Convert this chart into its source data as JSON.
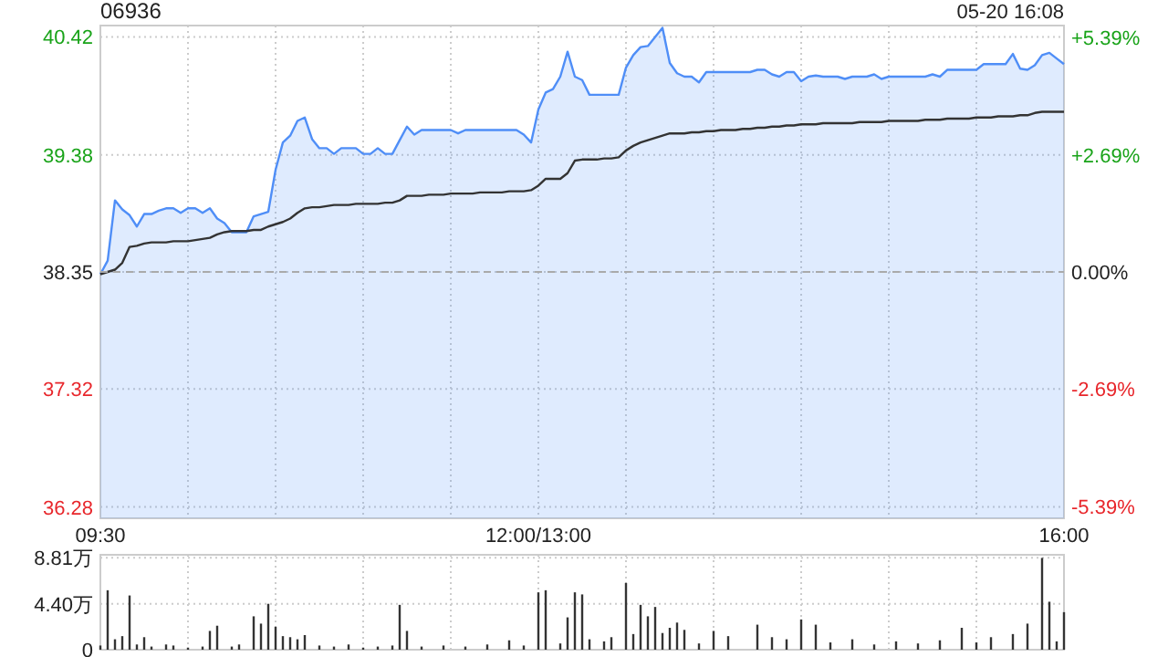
{
  "chart_data": [
    {
      "type": "line",
      "title": "06936",
      "subtitle": "05-20 16:08",
      "categories": [
        "09:30",
        null,
        null,
        null,
        null,
        null,
        null,
        null,
        null,
        null,
        null,
        null,
        null,
        null,
        null,
        null,
        null,
        null,
        null,
        null,
        null,
        null,
        null,
        null,
        null,
        null,
        null,
        null,
        null,
        null,
        null,
        null,
        null,
        null,
        null,
        null,
        null,
        null,
        null,
        null,
        null,
        null,
        null,
        null,
        null,
        null,
        null,
        null,
        null,
        null,
        null,
        null,
        null,
        null,
        null,
        null,
        null,
        null,
        null,
        null,
        "12:00/13:00",
        null,
        null,
        null,
        null,
        null,
        null,
        null,
        null,
        null,
        null,
        null,
        null,
        null,
        null,
        null,
        null,
        null,
        null,
        null,
        null,
        null,
        null,
        null,
        null,
        null,
        null,
        null,
        null,
        null,
        null,
        null,
        null,
        null,
        null,
        null,
        null,
        null,
        null,
        null,
        null,
        null,
        null,
        null,
        null,
        null,
        null,
        null,
        null,
        null,
        null,
        null,
        null,
        null,
        null,
        null,
        null,
        null,
        null,
        null,
        null,
        null,
        null,
        null,
        null,
        null,
        null,
        null,
        null,
        null,
        null,
        null,
        "16:00"
      ],
      "ylim": [
        36.18,
        40.52
      ],
      "yticks": [
        36.28,
        37.32,
        38.35,
        39.38,
        40.42
      ],
      "y2lim": [
        -5.66,
        5.66
      ],
      "y2ticks": [
        {
          "value": -5.39,
          "label": "-5.39%"
        },
        {
          "value": -2.69,
          "label": "-2.69%"
        },
        {
          "value": 0,
          "label": "0.00%"
        },
        {
          "value": 2.69,
          "label": "+2.69%"
        },
        {
          "value": 5.39,
          "label": "+5.39%"
        }
      ],
      "grid": true,
      "ref_lines": [
        {
          "axis": "y",
          "value": 38.35,
          "line_style": "dashed",
          "color": "#aaaaaa"
        }
      ],
      "series": [
        {
          "type": "area",
          "color": "#4f8ef7",
          "values": [
            38.33,
            38.45,
            38.98,
            38.9,
            38.85,
            38.75,
            38.86,
            38.86,
            38.89,
            38.91,
            38.91,
            38.87,
            38.91,
            38.91,
            38.87,
            38.91,
            38.82,
            38.78,
            38.7,
            38.7,
            38.7,
            38.84,
            38.86,
            38.88,
            39.25,
            39.49,
            39.55,
            39.68,
            39.71,
            39.52,
            39.44,
            39.44,
            39.39,
            39.44,
            39.44,
            39.44,
            39.39,
            39.39,
            39.44,
            39.39,
            39.39,
            39.51,
            39.63,
            39.56,
            39.6,
            39.6,
            39.6,
            39.6,
            39.6,
            39.57,
            39.6,
            39.6,
            39.6,
            39.6,
            39.6,
            39.6,
            39.6,
            39.6,
            39.56,
            39.49,
            39.78,
            39.93,
            39.96,
            40.07,
            40.29,
            40.07,
            40.04,
            39.91,
            39.91,
            39.91,
            39.91,
            39.91,
            40.15,
            40.26,
            40.33,
            40.34,
            40.42,
            40.5,
            40.19,
            40.1,
            40.07,
            40.07,
            40.02,
            40.11,
            40.11,
            40.11,
            40.11,
            40.11,
            40.11,
            40.11,
            40.13,
            40.13,
            40.09,
            40.07,
            40.11,
            40.11,
            40.03,
            40.07,
            40.08,
            40.07,
            40.07,
            40.07,
            40.05,
            40.07,
            40.07,
            40.07,
            40.09,
            40.05,
            40.07,
            40.07,
            40.07,
            40.07,
            40.07,
            40.07,
            40.09,
            40.07,
            40.13,
            40.13,
            40.13,
            40.13,
            40.13,
            40.18,
            40.18,
            40.18,
            40.18,
            40.27,
            40.14,
            40.13,
            40.17,
            40.26,
            40.28,
            40.23,
            40.18
          ]
        },
        {
          "type": "line",
          "color": "#333333",
          "values": [
            38.33,
            38.35,
            38.37,
            38.43,
            38.57,
            38.58,
            38.6,
            38.61,
            38.61,
            38.61,
            38.62,
            38.62,
            38.62,
            38.63,
            38.64,
            38.65,
            38.68,
            38.7,
            38.71,
            38.71,
            38.71,
            38.72,
            38.72,
            38.75,
            38.77,
            38.79,
            38.82,
            38.87,
            38.91,
            38.92,
            38.92,
            38.93,
            38.94,
            38.94,
            38.94,
            38.95,
            38.95,
            38.95,
            38.95,
            38.96,
            38.96,
            38.98,
            39.02,
            39.02,
            39.02,
            39.03,
            39.03,
            39.03,
            39.04,
            39.04,
            39.04,
            39.04,
            39.05,
            39.05,
            39.05,
            39.05,
            39.06,
            39.06,
            39.06,
            39.07,
            39.11,
            39.17,
            39.17,
            39.17,
            39.22,
            39.33,
            39.34,
            39.34,
            39.34,
            39.35,
            39.35,
            39.36,
            39.42,
            39.46,
            39.49,
            39.51,
            39.53,
            39.55,
            39.57,
            39.57,
            39.57,
            39.58,
            39.58,
            39.59,
            39.59,
            39.6,
            39.6,
            39.6,
            39.61,
            39.61,
            39.62,
            39.62,
            39.63,
            39.63,
            39.64,
            39.64,
            39.65,
            39.65,
            39.65,
            39.66,
            39.66,
            39.66,
            39.66,
            39.66,
            39.67,
            39.67,
            39.67,
            39.67,
            39.68,
            39.68,
            39.68,
            39.68,
            39.68,
            39.69,
            39.69,
            39.69,
            39.7,
            39.7,
            39.7,
            39.7,
            39.71,
            39.71,
            39.71,
            39.72,
            39.72,
            39.72,
            39.73,
            39.73,
            39.75,
            39.76,
            39.76,
            39.76,
            39.76
          ]
        }
      ]
    },
    {
      "type": "bar",
      "color": "#333333",
      "categories": [
        null,
        null,
        null,
        null,
        null,
        null,
        null,
        null,
        null,
        null,
        null,
        null,
        null,
        null,
        null,
        null,
        null,
        null,
        null,
        null,
        null,
        null,
        null,
        null,
        null,
        null,
        null,
        null,
        null,
        null,
        null,
        null,
        null,
        null,
        null,
        null,
        null,
        null,
        null,
        null,
        null,
        null,
        null,
        null,
        null,
        null,
        null,
        null,
        null,
        null,
        null,
        null,
        null,
        null,
        null,
        null,
        null,
        null,
        null,
        null,
        null,
        null,
        null,
        null,
        null,
        null,
        null,
        null,
        null,
        null,
        null,
        null,
        null,
        null,
        null,
        null,
        null,
        null,
        null,
        null,
        null,
        null,
        null,
        null,
        null,
        null,
        null,
        null,
        null,
        null,
        null,
        null,
        null,
        null,
        null,
        null,
        null,
        null,
        null,
        null,
        null,
        null,
        null,
        null,
        null,
        null,
        null,
        null,
        null,
        null,
        null,
        null,
        null,
        null,
        null,
        null,
        null,
        null,
        null,
        null,
        null,
        null,
        null,
        null,
        null,
        null,
        null,
        null,
        null,
        null,
        null,
        null,
        null
      ],
      "ylim": [
        0,
        9.1
      ],
      "yticks": [
        0,
        {
          "value": 4.4,
          "label": "4.40万"
        },
        {
          "value": 8.81,
          "label": "8.81万"
        }
      ],
      "grid": true,
      "values": [
        0.4,
        5.7,
        1.0,
        1.3,
        5.2,
        0.5,
        1.2,
        0.3,
        null,
        0.5,
        0.4,
        null,
        0.2,
        null,
        0.3,
        1.8,
        2.3,
        null,
        0.3,
        0.5,
        null,
        3.2,
        2.5,
        4.4,
        2.2,
        1.3,
        1.2,
        1.0,
        1.4,
        null,
        0.4,
        null,
        0.3,
        null,
        0.5,
        null,
        0.2,
        null,
        0.3,
        null,
        0.4,
        4.3,
        1.8,
        null,
        0.3,
        null,
        null,
        0.4,
        null,
        null,
        0.3,
        null,
        null,
        0.5,
        null,
        null,
        0.9,
        null,
        0.4,
        null,
        5.5,
        5.7,
        null,
        0.6,
        3.1,
        5.5,
        5.3,
        1.0,
        null,
        0.8,
        1.2,
        null,
        6.4,
        1.5,
        4.3,
        3.2,
        4.1,
        1.6,
        2.1,
        2.6,
        1.9,
        null,
        0.6,
        null,
        1.8,
        null,
        1.3,
        null,
        null,
        null,
        2.4,
        null,
        1.2,
        null,
        1.0,
        null,
        2.9,
        null,
        2.4,
        null,
        0.7,
        null,
        null,
        1.0,
        null,
        null,
        0.5,
        null,
        null,
        0.8,
        null,
        null,
        0.6,
        null,
        null,
        0.9,
        null,
        null,
        2.1,
        null,
        0.7,
        null,
        1.2,
        null,
        null,
        1.5,
        null,
        2.5,
        null,
        8.8,
        4.6,
        0.8,
        3.6
      ]
    }
  ]
}
